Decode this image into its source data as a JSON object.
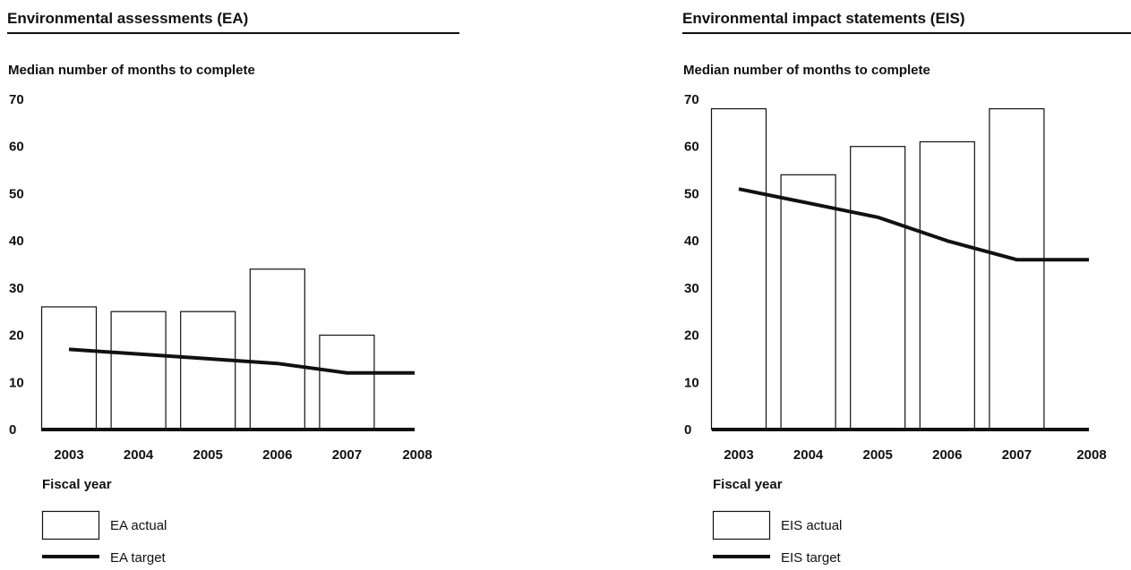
{
  "chart_data": [
    {
      "type": "bar",
      "title": "Environmental assessments (EA)",
      "ylabel": "Median number of months to complete",
      "xlabel": "Fiscal year",
      "ylim": [
        0,
        70
      ],
      "yticks": [
        0,
        10,
        20,
        30,
        40,
        50,
        60,
        70
      ],
      "grid": false,
      "x_ticks": [
        "2003",
        "2004",
        "2005",
        "2006",
        "2007",
        "2008"
      ],
      "bars": {
        "name": "EA actual",
        "categories": [
          "2003",
          "2004",
          "2005",
          "2006",
          "2007"
        ],
        "values": [
          26,
          25,
          25,
          34,
          20
        ]
      },
      "line": {
        "name": "EA target",
        "x": [
          "2003",
          "2004",
          "2005",
          "2006",
          "2007",
          "2008"
        ],
        "values": [
          17,
          16,
          15,
          14,
          12,
          12
        ]
      },
      "legend_position": "bottom-left"
    },
    {
      "type": "bar",
      "title": "Environmental impact statements (EIS)",
      "ylabel": "Median number of months to complete",
      "xlabel": "Fiscal year",
      "ylim": [
        0,
        70
      ],
      "yticks": [
        0,
        10,
        20,
        30,
        40,
        50,
        60,
        70
      ],
      "grid": false,
      "x_ticks": [
        "2003",
        "2004",
        "2005",
        "2006",
        "2007",
        "2008"
      ],
      "bars": {
        "name": "EIS actual",
        "categories": [
          "2003",
          "2004",
          "2005",
          "2006",
          "2007"
        ],
        "values": [
          68,
          54,
          60,
          61,
          68
        ]
      },
      "line": {
        "name": "EIS target",
        "x": [
          "2003",
          "2004",
          "2005",
          "2006",
          "2007",
          "2008"
        ],
        "values": [
          51,
          48,
          45,
          40,
          36,
          36
        ]
      },
      "legend_position": "bottom-left"
    }
  ],
  "colors": {
    "ink": "#111111",
    "bar_fill": "#ffffff"
  }
}
